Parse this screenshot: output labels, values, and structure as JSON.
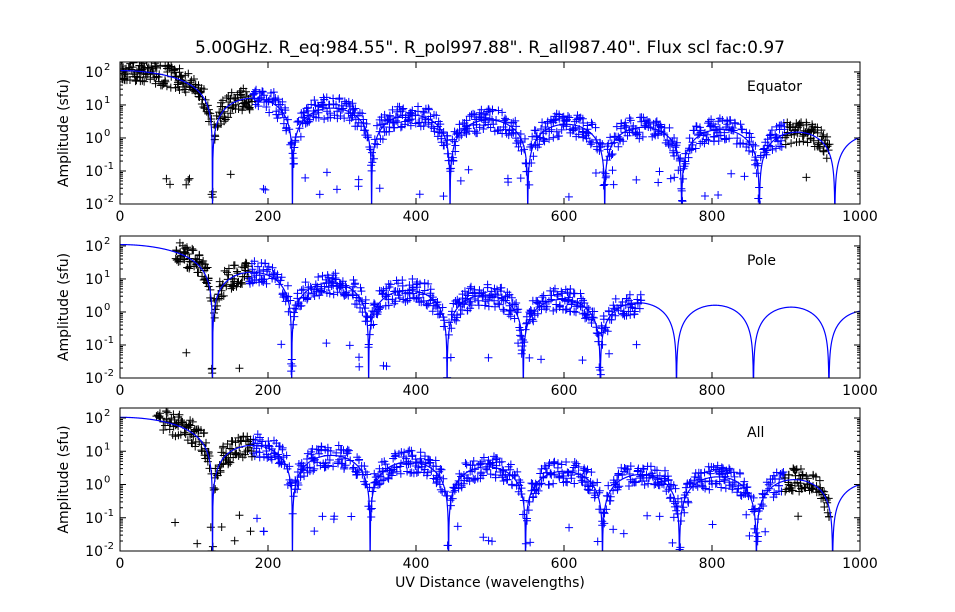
{
  "title": "5.00GHz. R_eq:984.55\". R_pol997.88\". R_all987.40\". Flux scl fac:0.97",
  "xlabel": "UV Distance (wavelengths)",
  "colors": {
    "model": "#0000ff",
    "data_black": "#000000",
    "data_blue": "#0000ff"
  },
  "chart_data": [
    {
      "type": "scatter",
      "panel_label": "Equator",
      "ylabel": "Amplitude (sfu)",
      "xlim": [
        0,
        1000
      ],
      "ylim": [
        0.01,
        200
      ],
      "yscale": "log",
      "x_ticks": [
        "0",
        "200",
        "400",
        "600",
        "800",
        "1000"
      ],
      "y_ticks": [
        "10^-2",
        "10^-1",
        "10^0",
        "10^1",
        "10^2"
      ],
      "model_nulls": [
        125,
        233,
        340,
        446,
        551,
        655,
        759,
        864,
        966
      ],
      "model_lobe_peaks": [
        110,
        16,
        8,
        5,
        3.5,
        2.6,
        2.1,
        1.8,
        1.5,
        1.2
      ],
      "black_segments": [
        [
          0,
          125
        ],
        [
          125,
          180
        ],
        [
          900,
          960
        ]
      ],
      "blue_segments": [
        [
          180,
          900
        ]
      ]
    },
    {
      "type": "scatter",
      "panel_label": "Pole",
      "ylabel": "Amplitude (sfu)",
      "xlim": [
        0,
        1000
      ],
      "ylim": [
        0.01,
        200
      ],
      "yscale": "log",
      "x_ticks": [
        "0",
        "200",
        "400",
        "600",
        "800",
        "1000"
      ],
      "y_ticks": [
        "10^-2",
        "10^-1",
        "10^0",
        "10^1",
        "10^2"
      ],
      "model_nulls": [
        125,
        232,
        336,
        442,
        545,
        649,
        752,
        856,
        958
      ],
      "model_lobe_peaks": [
        110,
        16,
        7.5,
        4.5,
        3.2,
        2.4,
        1.9,
        1.6,
        1.4,
        1.1
      ],
      "black_segments": [
        [
          75,
          175
        ]
      ],
      "blue_segments": [
        [
          175,
          705
        ]
      ]
    },
    {
      "type": "scatter",
      "panel_label": "All",
      "ylabel": "Amplitude (sfu)",
      "xlim": [
        0,
        1000
      ],
      "ylim": [
        0.01,
        200
      ],
      "yscale": "log",
      "x_ticks": [
        "0",
        "200",
        "400",
        "600",
        "800",
        "1000"
      ],
      "y_ticks": [
        "10^-2",
        "10^-1",
        "10^0",
        "10^1",
        "10^2"
      ],
      "model_nulls": [
        125,
        233,
        338,
        444,
        548,
        652,
        756,
        860,
        963
      ],
      "model_lobe_peaks": [
        105,
        15,
        7.5,
        4.8,
        3.4,
        2.5,
        2.0,
        1.7,
        1.4,
        1.1
      ],
      "black_segments": [
        [
          50,
          125
        ],
        [
          125,
          180
        ],
        [
          900,
          960
        ]
      ],
      "blue_segments": [
        [
          180,
          900
        ]
      ]
    }
  ]
}
